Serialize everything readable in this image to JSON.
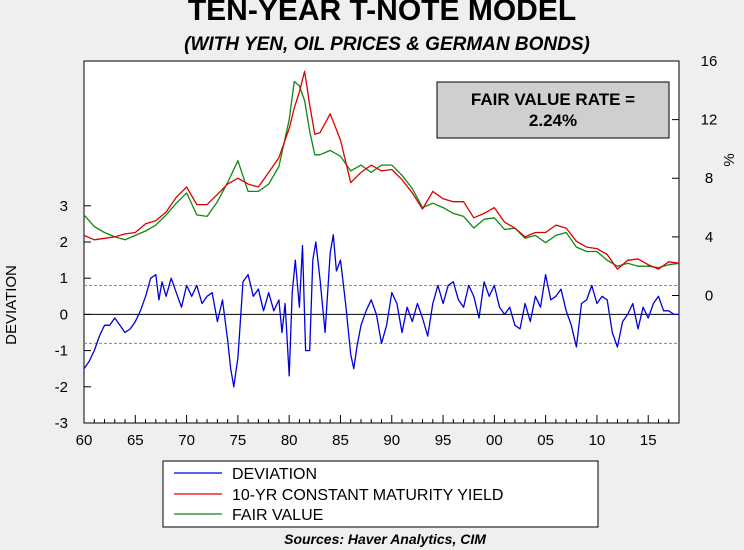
{
  "title": "TEN-YEAR T-NOTE MODEL",
  "subtitle": "(WITH YEN, OIL PRICES & GERMAN BONDS)",
  "source": "Sources:  Haver Analytics, CIM",
  "annotation": "FAIR VALUE RATE = 2.24%",
  "colors": {
    "deviation": "#0000dd",
    "yield": "#dd0000",
    "fair_value": "#118811",
    "annotation_bg": "#cfcfcf",
    "background": "#efefef",
    "plot_bg": "#ffffff"
  },
  "chart_data": {
    "type": "line",
    "title": "TEN-YEAR T-NOTE MODEL",
    "subtitle": "(WITH YEN, OIL PRICES & GERMAN BONDS)",
    "xlabel": "",
    "ylabel_left": "DEVIATION",
    "ylabel_right": "%",
    "x_ticks": [
      "60",
      "65",
      "70",
      "75",
      "80",
      "85",
      "90",
      "95",
      "00",
      "05",
      "10",
      "15"
    ],
    "xlim": [
      1960,
      2018
    ],
    "y_left_ticks": [
      "-3",
      "-2",
      "-1",
      "0",
      "1",
      "2",
      "3"
    ],
    "y_left_lim": [
      -3,
      7
    ],
    "y_right_ticks": [
      "0",
      "4",
      "8",
      "12",
      "16"
    ],
    "y_right_lim": [
      -8.7,
      16
    ],
    "reference_lines_left": [
      0,
      0.8,
      -0.8
    ],
    "legend_position": "bottom-center",
    "legend": [
      "DEVIATION",
      "10-YR CONSTANT MATURITY YIELD",
      "FAIR VALUE"
    ],
    "annotation": "FAIR VALUE RATE = 2.24%",
    "series": [
      {
        "name": "DEVIATION",
        "axis": "left",
        "x": [
          1960,
          1960.5,
          1961,
          1961.5,
          1962,
          1962.5,
          1963,
          1963.5,
          1964,
          1964.5,
          1965,
          1965.5,
          1966,
          1966.5,
          1967,
          1967.3,
          1967.6,
          1968,
          1968.5,
          1969,
          1969.5,
          1970,
          1970.5,
          1971,
          1971.5,
          1972,
          1972.5,
          1973,
          1973.5,
          1974,
          1974.3,
          1974.6,
          1975,
          1975.5,
          1976,
          1976.5,
          1977,
          1977.5,
          1978,
          1978.5,
          1979,
          1979.3,
          1979.6,
          1980,
          1980.3,
          1980.6,
          1981,
          1981.3,
          1981.6,
          1982,
          1982.3,
          1982.6,
          1983,
          1983.5,
          1984,
          1984.3,
          1984.6,
          1985,
          1985.5,
          1986,
          1986.3,
          1986.6,
          1987,
          1987.5,
          1988,
          1988.5,
          1989,
          1989.5,
          1990,
          1990.5,
          1991,
          1991.5,
          1992,
          1992.5,
          1993,
          1993.5,
          1994,
          1994.5,
          1995,
          1995.5,
          1996,
          1996.5,
          1997,
          1997.5,
          1998,
          1998.5,
          1999,
          1999.5,
          2000,
          2000.5,
          2001,
          2001.5,
          2002,
          2002.5,
          2003,
          2003.5,
          2004,
          2004.5,
          2005,
          2005.5,
          2006,
          2006.5,
          2007,
          2007.5,
          2008,
          2008.5,
          2009,
          2009.5,
          2010,
          2010.5,
          2011,
          2011.5,
          2012,
          2012.5,
          2013,
          2013.5,
          2014,
          2014.5,
          2015,
          2015.5,
          2016,
          2016.5,
          2017,
          2017.5,
          2018
        ],
        "values": [
          -1.5,
          -1.3,
          -1.0,
          -0.6,
          -0.3,
          -0.3,
          -0.1,
          -0.3,
          -0.5,
          -0.4,
          -0.2,
          0.1,
          0.5,
          1.0,
          1.1,
          0.4,
          0.9,
          0.5,
          1.0,
          0.6,
          0.2,
          0.8,
          0.5,
          0.8,
          0.3,
          0.5,
          0.6,
          -0.2,
          0.4,
          -0.7,
          -1.5,
          -2.0,
          -1.2,
          0.9,
          1.1,
          0.5,
          0.7,
          0.1,
          0.6,
          0.1,
          0.4,
          -0.5,
          0.3,
          -1.7,
          0.6,
          1.5,
          0.2,
          1.9,
          -1.0,
          -1.0,
          1.5,
          2.0,
          1.0,
          -0.5,
          1.7,
          2.2,
          1.2,
          1.5,
          0.3,
          -1.1,
          -1.5,
          -0.9,
          -0.3,
          0.1,
          0.4,
          0.0,
          -0.8,
          -0.3,
          0.6,
          0.3,
          -0.5,
          0.2,
          -0.2,
          0.3,
          -0.1,
          -0.6,
          0.3,
          0.8,
          0.3,
          0.8,
          0.9,
          0.4,
          0.2,
          0.8,
          0.5,
          -0.1,
          0.9,
          0.5,
          0.8,
          0.2,
          0.0,
          0.2,
          -0.3,
          -0.4,
          0.3,
          -0.2,
          0.5,
          0.2,
          1.1,
          0.4,
          0.5,
          0.7,
          0.1,
          -0.3,
          -0.9,
          0.3,
          0.4,
          0.8,
          0.3,
          0.5,
          0.4,
          -0.5,
          -0.9,
          -0.2,
          0.0,
          0.3,
          -0.4,
          0.2,
          -0.1,
          0.3,
          0.5,
          0.1,
          0.1,
          0.0,
          0.0
        ]
      },
      {
        "name": "10-YR CONSTANT MATURITY YIELD",
        "axis": "right",
        "x": [
          1960,
          1961,
          1962,
          1963,
          1964,
          1965,
          1966,
          1967,
          1968,
          1969,
          1970,
          1971,
          1972,
          1973,
          1974,
          1975,
          1976,
          1977,
          1978,
          1979,
          1980,
          1980.5,
          1981,
          1981.5,
          1982,
          1982.5,
          1983,
          1984,
          1985,
          1986,
          1987,
          1988,
          1989,
          1990,
          1991,
          1992,
          1993,
          1994,
          1995,
          1996,
          1997,
          1998,
          1999,
          2000,
          2001,
          2002,
          2003,
          2004,
          2005,
          2006,
          2007,
          2008,
          2009,
          2010,
          2011,
          2012,
          2013,
          2014,
          2015,
          2016,
          2017,
          2018
        ],
        "values": [
          4.1,
          3.8,
          3.9,
          4.0,
          4.2,
          4.3,
          4.9,
          5.1,
          5.7,
          6.7,
          7.4,
          6.2,
          6.2,
          6.9,
          7.6,
          8.0,
          7.6,
          7.4,
          8.4,
          9.4,
          11.4,
          12.8,
          13.9,
          15.3,
          13.0,
          11.0,
          11.1,
          12.4,
          10.6,
          7.7,
          8.4,
          8.9,
          8.5,
          8.6,
          7.9,
          7.0,
          5.9,
          7.1,
          6.6,
          6.4,
          6.4,
          5.3,
          5.6,
          6.0,
          5.0,
          4.6,
          4.0,
          4.3,
          4.3,
          4.8,
          4.6,
          3.7,
          3.3,
          3.2,
          2.8,
          1.8,
          2.4,
          2.5,
          2.1,
          1.8,
          2.3,
          2.2
        ]
      },
      {
        "name": "FAIR VALUE",
        "axis": "right",
        "x": [
          1960,
          1961,
          1962,
          1963,
          1964,
          1965,
          1966,
          1967,
          1968,
          1969,
          1970,
          1971,
          1972,
          1973,
          1974,
          1975,
          1976,
          1977,
          1978,
          1979,
          1980,
          1980.5,
          1981,
          1981.5,
          1982,
          1982.5,
          1983,
          1984,
          1985,
          1986,
          1987,
          1988,
          1989,
          1990,
          1991,
          1992,
          1993,
          1994,
          1995,
          1996,
          1997,
          1998,
          1999,
          2000,
          2001,
          2002,
          2003,
          2004,
          2005,
          2006,
          2007,
          2008,
          2009,
          2010,
          2011,
          2012,
          2013,
          2014,
          2015,
          2016,
          2017,
          2018
        ],
        "values": [
          5.5,
          4.7,
          4.3,
          4.0,
          3.8,
          4.1,
          4.4,
          4.8,
          5.5,
          6.3,
          7.0,
          5.5,
          5.4,
          6.4,
          7.7,
          9.2,
          7.1,
          7.1,
          7.6,
          8.8,
          12.0,
          14.6,
          14.3,
          13.3,
          11.2,
          9.6,
          9.6,
          9.9,
          9.5,
          8.5,
          8.9,
          8.4,
          8.9,
          8.9,
          8.2,
          7.3,
          6.0,
          6.3,
          6.0,
          5.6,
          5.4,
          4.6,
          5.2,
          5.3,
          4.5,
          4.6,
          3.9,
          4.1,
          3.6,
          4.1,
          4.3,
          3.3,
          3.0,
          3.0,
          2.4,
          2.0,
          2.2,
          2.0,
          2.0,
          1.9,
          2.1,
          2.2
        ]
      }
    ]
  }
}
